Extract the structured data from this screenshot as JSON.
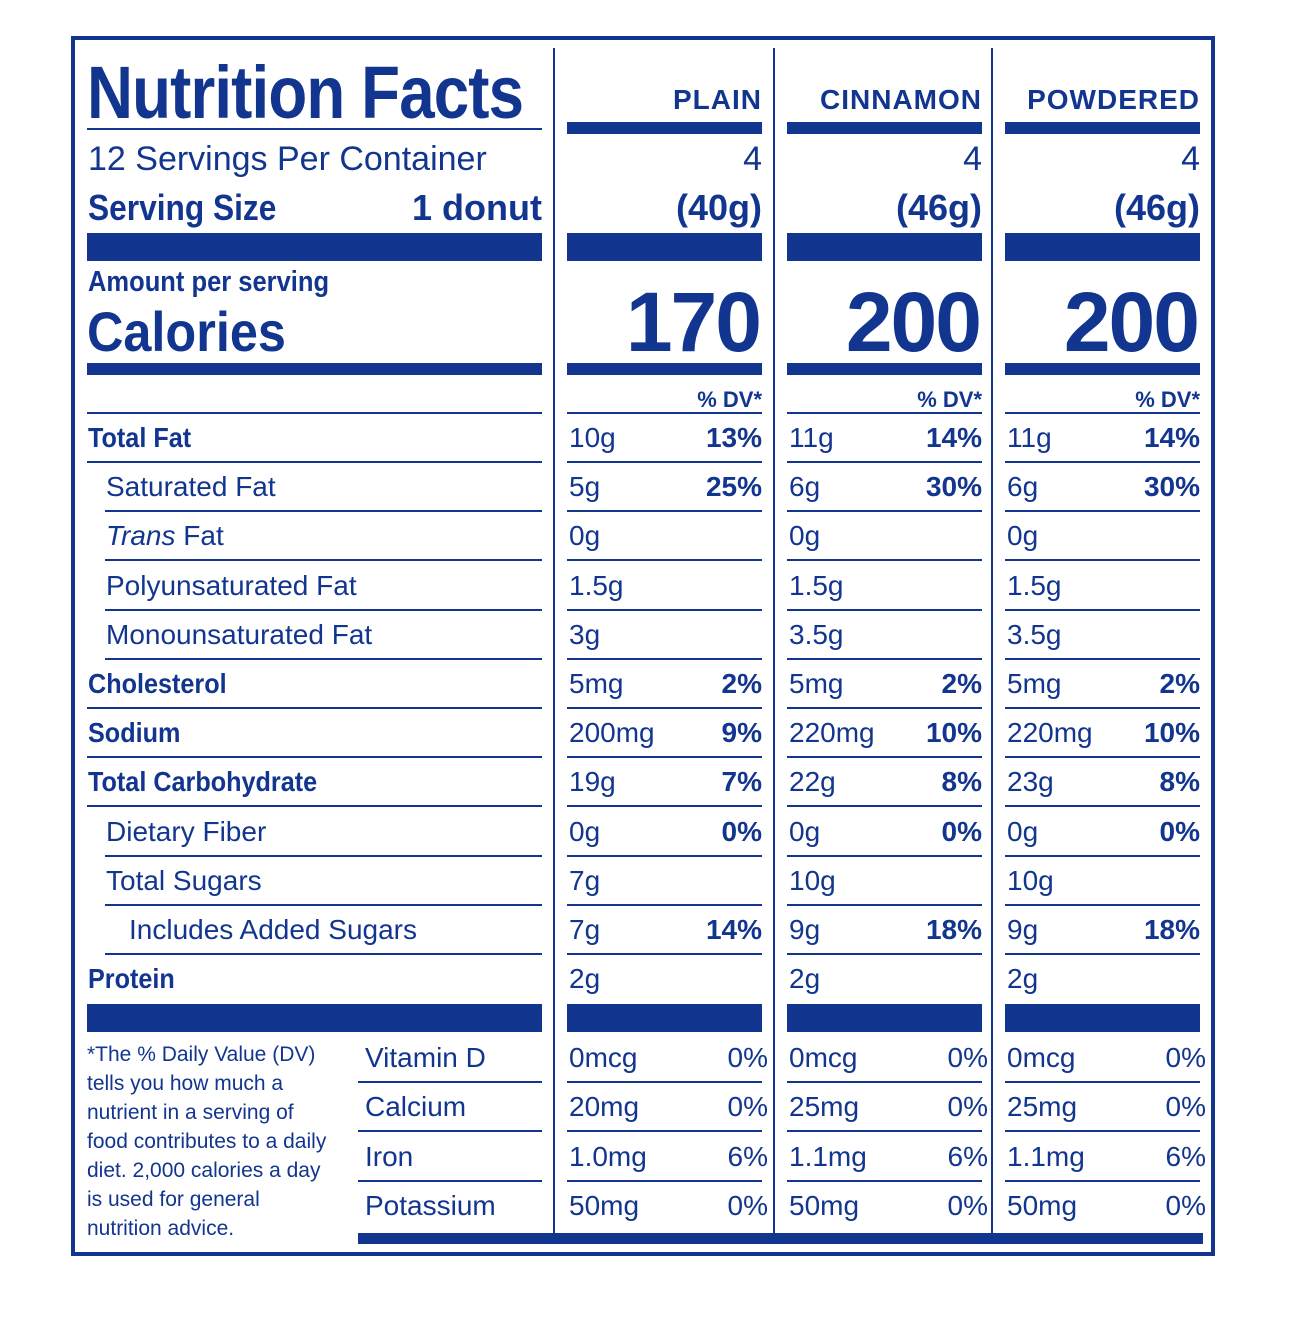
{
  "label": {
    "title": "Nutrition Facts",
    "servings_per_container": "12 Servings Per Container",
    "serving_size_label": "Serving Size",
    "serving_size_value": "1 donut",
    "amount_per_serving": "Amount per serving",
    "calories_label": "Calories",
    "dv_header": "% DV*"
  },
  "columns": [
    {
      "name": "PLAIN",
      "servings": "4",
      "weight": "(40g)",
      "calories": "170"
    },
    {
      "name": "CINNAMON",
      "servings": "4",
      "weight": "(46g)",
      "calories": "200"
    },
    {
      "name": "POWDERED",
      "servings": "4",
      "weight": "(46g)",
      "calories": "200"
    }
  ],
  "nutrients": [
    {
      "label": "Total Fat",
      "vals": [
        [
          "10g",
          "13%"
        ],
        [
          "11g",
          "14%"
        ],
        [
          "11g",
          "14%"
        ]
      ]
    },
    {
      "label": "Saturated Fat",
      "vals": [
        [
          "5g",
          "25%"
        ],
        [
          "6g",
          "30%"
        ],
        [
          "6g",
          "30%"
        ]
      ]
    },
    {
      "label_italic": "Trans",
      "label": " Fat",
      "vals": [
        [
          "0g",
          ""
        ],
        [
          "0g",
          ""
        ],
        [
          "0g",
          ""
        ]
      ]
    },
    {
      "label": "Polyunsaturated Fat",
      "vals": [
        [
          "1.5g",
          ""
        ],
        [
          "1.5g",
          ""
        ],
        [
          "1.5g",
          ""
        ]
      ]
    },
    {
      "label": "Monounsaturated Fat",
      "vals": [
        [
          "3g",
          ""
        ],
        [
          "3.5g",
          ""
        ],
        [
          "3.5g",
          ""
        ]
      ]
    },
    {
      "label": "Cholesterol",
      "vals": [
        [
          "5mg",
          "2%"
        ],
        [
          "5mg",
          "2%"
        ],
        [
          "5mg",
          "2%"
        ]
      ]
    },
    {
      "label": "Sodium",
      "vals": [
        [
          "200mg",
          "9%"
        ],
        [
          "220mg",
          "10%"
        ],
        [
          "220mg",
          "10%"
        ]
      ]
    },
    {
      "label": "Total Carbohydrate",
      "vals": [
        [
          "19g",
          "7%"
        ],
        [
          "22g",
          "8%"
        ],
        [
          "23g",
          "8%"
        ]
      ]
    },
    {
      "label": "Dietary Fiber",
      "vals": [
        [
          "0g",
          "0%"
        ],
        [
          "0g",
          "0%"
        ],
        [
          "0g",
          "0%"
        ]
      ]
    },
    {
      "label": "Total Sugars",
      "vals": [
        [
          "7g",
          ""
        ],
        [
          "10g",
          ""
        ],
        [
          "10g",
          ""
        ]
      ]
    },
    {
      "label": "Includes Added Sugars",
      "vals": [
        [
          "7g",
          "14%"
        ],
        [
          "9g",
          "18%"
        ],
        [
          "9g",
          "18%"
        ]
      ]
    },
    {
      "label": "Protein",
      "vals": [
        [
          "2g",
          ""
        ],
        [
          "2g",
          ""
        ],
        [
          "2g",
          ""
        ]
      ]
    }
  ],
  "vitamins": [
    {
      "label": "Vitamin D",
      "vals": [
        [
          "0mcg",
          "0%"
        ],
        [
          "0mcg",
          "0%"
        ],
        [
          "0mcg",
          "0%"
        ]
      ]
    },
    {
      "label": "Calcium",
      "vals": [
        [
          "20mg",
          "0%"
        ],
        [
          "25mg",
          "0%"
        ],
        [
          "25mg",
          "0%"
        ]
      ]
    },
    {
      "label": "Iron",
      "vals": [
        [
          "1.0mg",
          "6%"
        ],
        [
          "1.1mg",
          "6%"
        ],
        [
          "1.1mg",
          "6%"
        ]
      ]
    },
    {
      "label": "Potassium",
      "vals": [
        [
          "50mg",
          "0%"
        ],
        [
          "50mg",
          "0%"
        ],
        [
          "50mg",
          "0%"
        ]
      ]
    }
  ],
  "footnote": "*The % Daily Value (DV) tells you how much a nutrient in a serving of food contributes to a daily diet. 2,000 calories a day is used for general nutrition advice."
}
